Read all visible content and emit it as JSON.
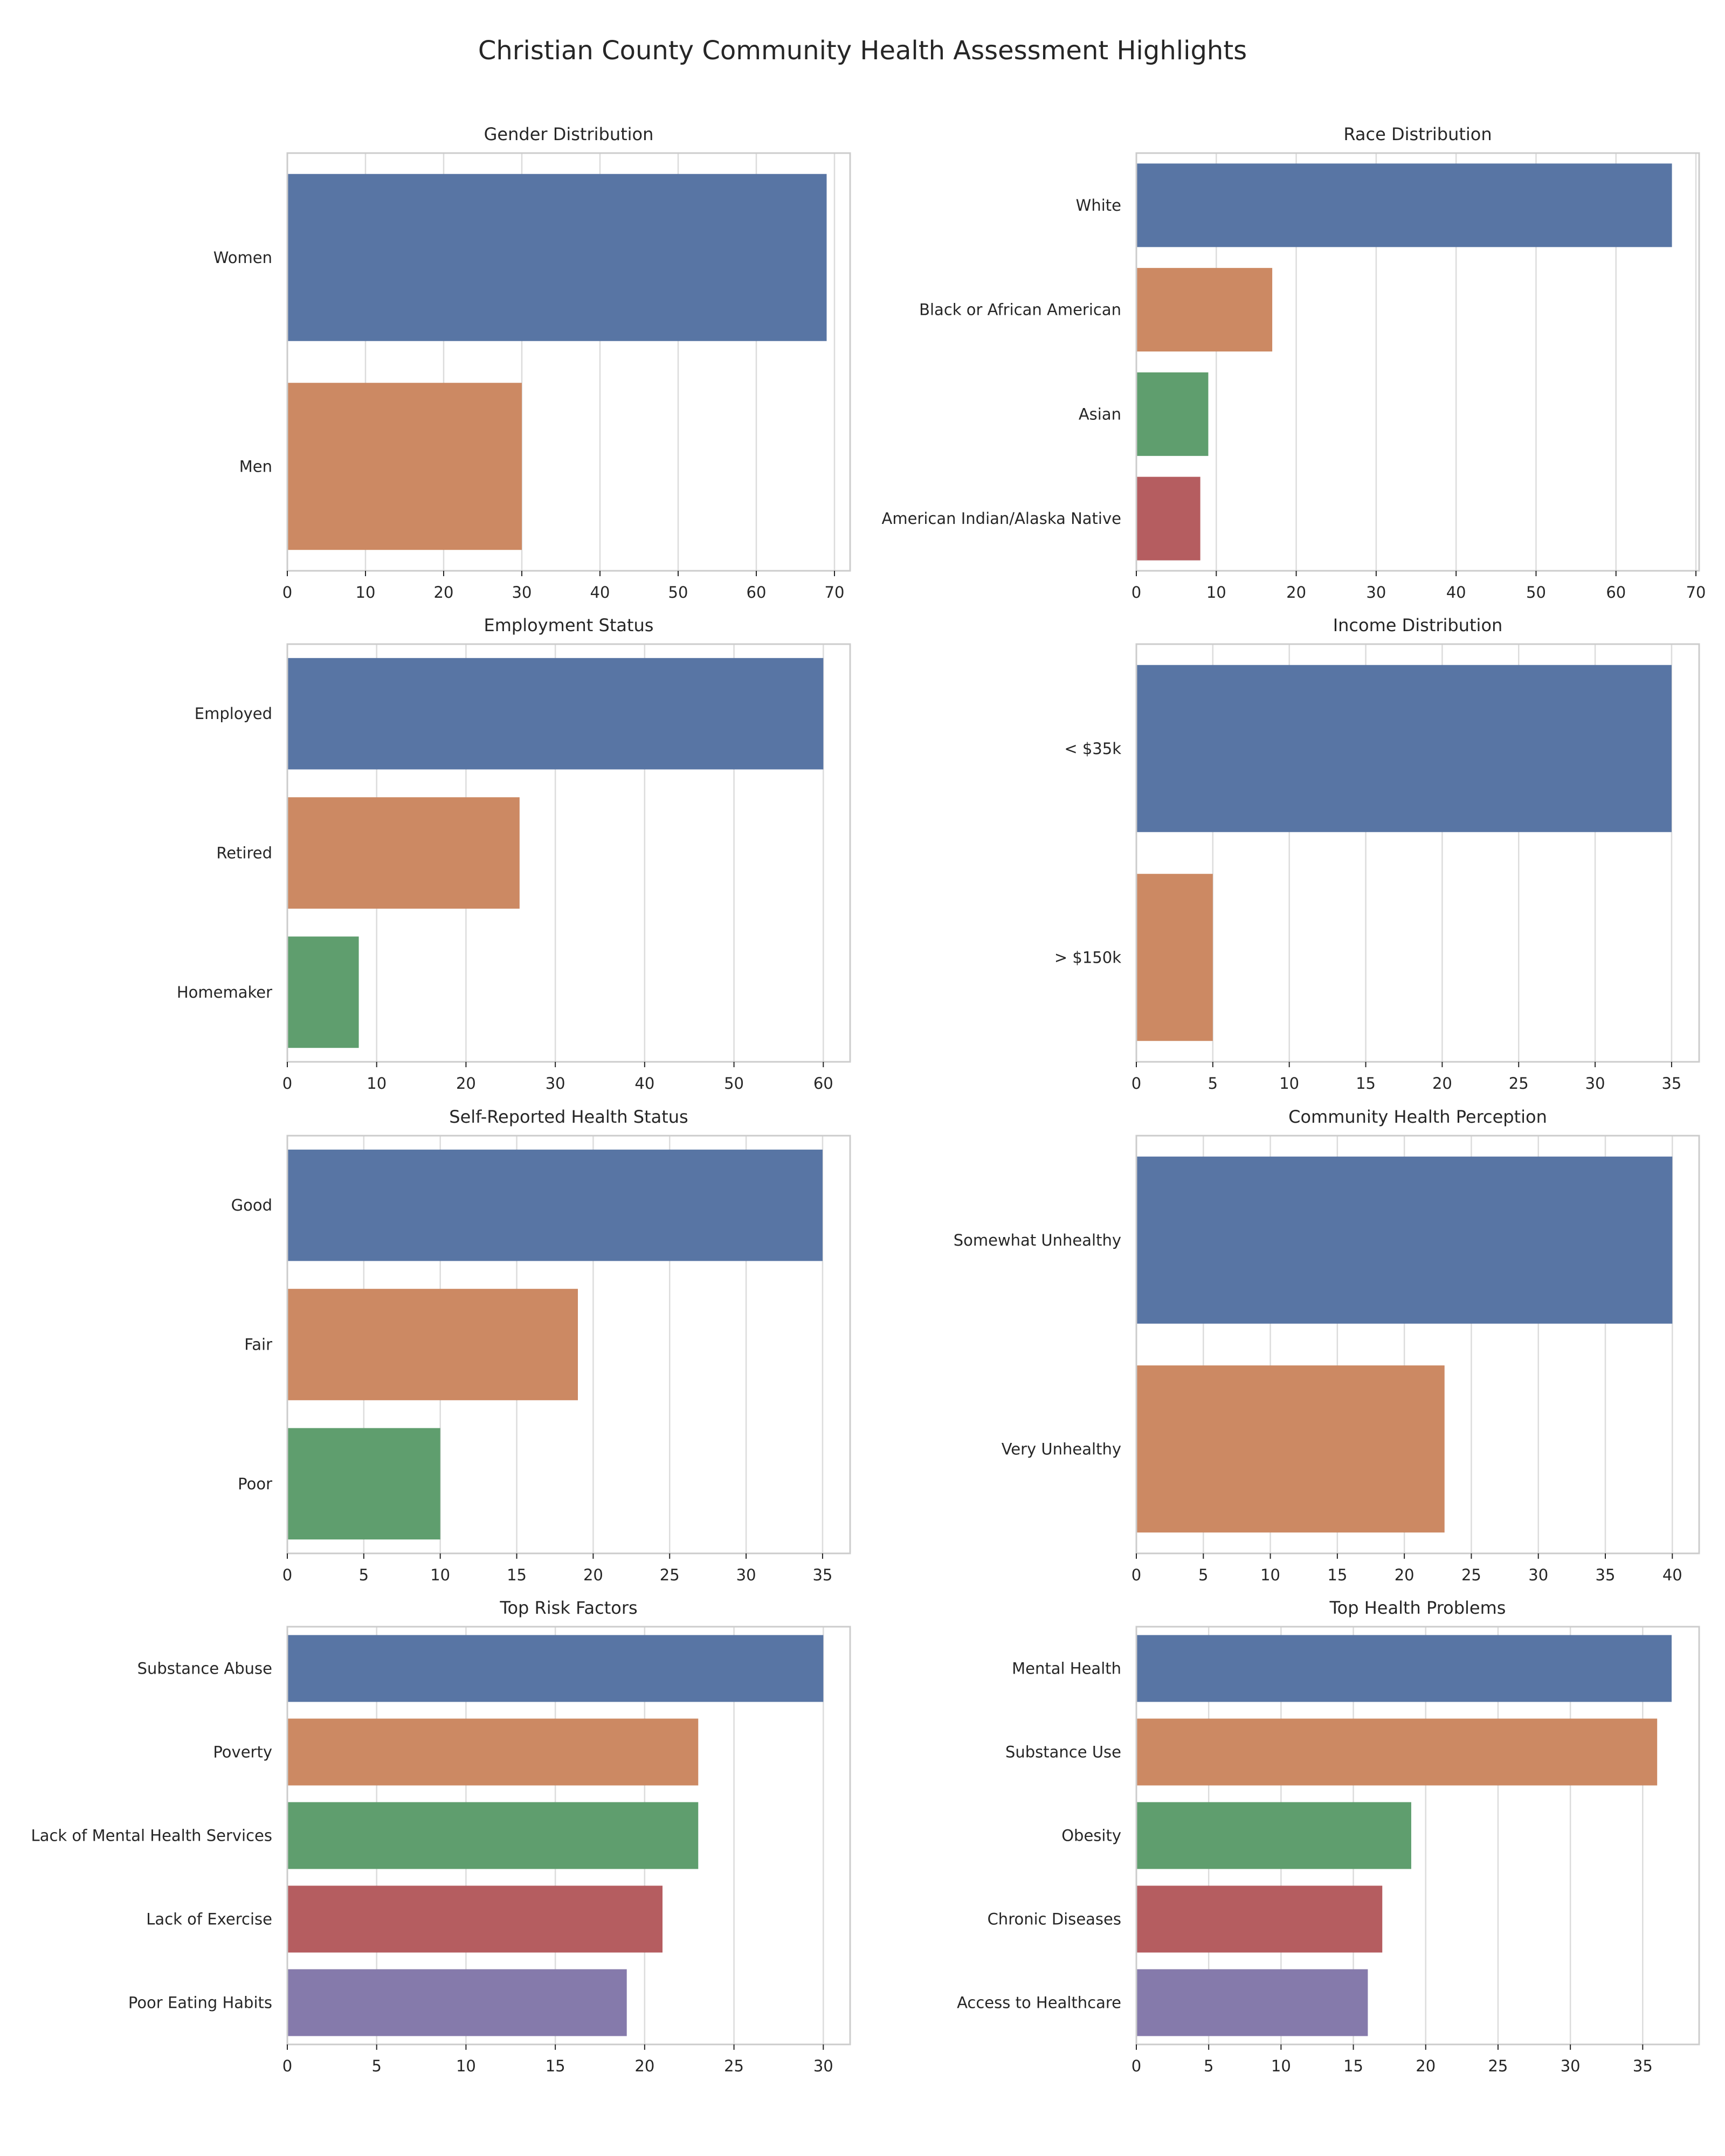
{
  "title": "Christian County Community Health Assessment Highlights",
  "colors": [
    "#5875a4",
    "#cc8963",
    "#5f9e6e",
    "#b55d60",
    "#857aab"
  ],
  "chart_data": [
    {
      "type": "bar",
      "orientation": "horizontal",
      "title": "Gender Distribution",
      "categories": [
        "Women",
        "Men"
      ],
      "values": [
        69,
        30
      ],
      "xlim": [
        0,
        72
      ],
      "ticks": [
        0,
        10,
        20,
        30,
        40,
        50,
        60,
        70
      ],
      "grid": true
    },
    {
      "type": "bar",
      "orientation": "horizontal",
      "title": "Race Distribution",
      "categories": [
        "White",
        "Black or African American",
        "Asian",
        "American Indian/Alaska Native"
      ],
      "values": [
        67,
        17,
        9,
        8
      ],
      "xlim": [
        0,
        70.4
      ],
      "ticks": [
        0,
        10,
        20,
        30,
        40,
        50,
        60,
        70
      ],
      "grid": true
    },
    {
      "type": "bar",
      "orientation": "horizontal",
      "title": "Employment Status",
      "categories": [
        "Employed",
        "Retired",
        "Homemaker"
      ],
      "values": [
        60,
        26,
        8
      ],
      "xlim": [
        0,
        63
      ],
      "ticks": [
        0,
        10,
        20,
        30,
        40,
        50,
        60
      ],
      "grid": true
    },
    {
      "type": "bar",
      "orientation": "horizontal",
      "title": "Income Distribution",
      "categories": [
        "< $35k",
        "> $150k"
      ],
      "values": [
        35,
        5
      ],
      "xlim": [
        0,
        36.8
      ],
      "ticks": [
        0,
        5,
        10,
        15,
        20,
        25,
        30,
        35
      ],
      "grid": true
    },
    {
      "type": "bar",
      "orientation": "horizontal",
      "title": "Self-Reported Health Status",
      "categories": [
        "Good",
        "Fair",
        "Poor"
      ],
      "values": [
        35,
        19,
        10
      ],
      "xlim": [
        0,
        36.8
      ],
      "ticks": [
        0,
        5,
        10,
        15,
        20,
        25,
        30,
        35
      ],
      "grid": true
    },
    {
      "type": "bar",
      "orientation": "horizontal",
      "title": "Community Health Perception",
      "categories": [
        "Somewhat Unhealthy",
        "Very Unhealthy"
      ],
      "values": [
        40,
        23
      ],
      "xlim": [
        0,
        42
      ],
      "ticks": [
        0,
        5,
        10,
        15,
        20,
        25,
        30,
        35,
        40
      ],
      "grid": true
    },
    {
      "type": "bar",
      "orientation": "horizontal",
      "title": "Top Risk Factors",
      "categories": [
        "Substance Abuse",
        "Poverty",
        "Lack of Mental Health Services",
        "Lack of Exercise",
        "Poor Eating Habits"
      ],
      "values": [
        30,
        23,
        23,
        21,
        19
      ],
      "xlim": [
        0,
        31.5
      ],
      "ticks": [
        0,
        5,
        10,
        15,
        20,
        25,
        30
      ],
      "grid": true
    },
    {
      "type": "bar",
      "orientation": "horizontal",
      "title": "Top Health Problems",
      "categories": [
        "Mental Health",
        "Substance Use",
        "Obesity",
        "Chronic Diseases",
        "Access to Healthcare"
      ],
      "values": [
        37,
        36,
        19,
        17,
        16
      ],
      "xlim": [
        0,
        38.9
      ],
      "ticks": [
        0,
        5,
        10,
        15,
        20,
        25,
        30,
        35
      ],
      "grid": true
    }
  ]
}
